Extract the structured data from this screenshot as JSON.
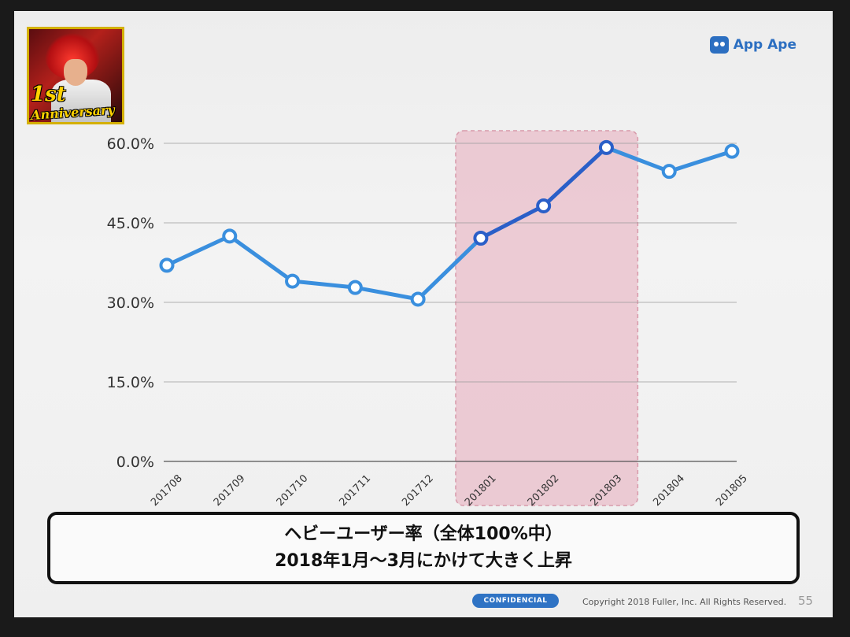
{
  "brand": {
    "name": "App Ape",
    "icon": "app-ape-icon",
    "color": "#2c6fc1"
  },
  "app_icon": {
    "line1": "1st",
    "line2": "Anniversary"
  },
  "chart_data": {
    "type": "line",
    "categories": [
      "201708",
      "201709",
      "201710",
      "201711",
      "201712",
      "201801",
      "201802",
      "201803",
      "201804",
      "201805"
    ],
    "series": [
      {
        "values": [
          37.0,
          42.5,
          34.0,
          32.8,
          30.6,
          42.1,
          48.2,
          59.2,
          54.7,
          58.5
        ]
      }
    ],
    "y_ticks": [
      "0.0%",
      "15.0%",
      "30.0%",
      "45.0%",
      "60.0%"
    ],
    "ylim": [
      0,
      60
    ],
    "grid": true,
    "highlight": {
      "from": "201801",
      "to": "201803",
      "color": "#e8b6c3"
    },
    "line_color": "#3a8fde",
    "highlight_line_color": "#2a5fc8"
  },
  "caption": {
    "line1": "ヘビーユーザー率（全体100%中）",
    "line2": "2018年1月〜3月にかけて大きく上昇"
  },
  "footer": {
    "badge": "CONFIDENCIAL",
    "copyright": "Copyright 2018 Fuller, Inc. All Rights Reserved.",
    "page": "55"
  }
}
